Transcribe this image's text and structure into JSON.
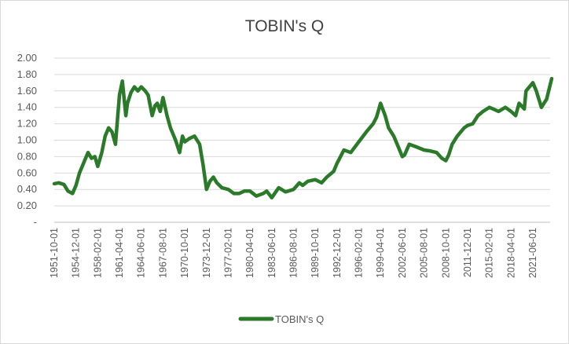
{
  "chart_data": {
    "type": "line",
    "title": "TOBIN's Q",
    "xlabel": "",
    "ylabel": "",
    "ylim": [
      0,
      2.0
    ],
    "y_ticks": [
      "-",
      "0.20",
      "0.40",
      "0.60",
      "0.80",
      "1.00",
      "1.20",
      "1.40",
      "1.60",
      "1.80",
      "2.00"
    ],
    "x_ticks": [
      "1951-10-01",
      "1954-12-01",
      "1958-02-01",
      "1961-04-01",
      "1964-06-01",
      "1967-08-01",
      "1970-10-01",
      "1973-12-01",
      "1977-02-01",
      "1980-04-01",
      "1983-06-01",
      "1986-08-01",
      "1989-10-01",
      "1992-12-01",
      "1996-02-01",
      "1999-04-01",
      "2002-06-01",
      "2005-08-01",
      "2008-10-01",
      "2011-12-01",
      "2015-02-01",
      "2018-04-01",
      "2021-06-01"
    ],
    "grid": true,
    "legend": "bottom",
    "color": "#2a7a2a",
    "series": [
      {
        "name": "TOBIN's Q",
        "x": [
          "1951-10-01",
          "1952-06-01",
          "1953-03-01",
          "1953-10-01",
          "1954-06-01",
          "1954-12-01",
          "1955-06-01",
          "1956-03-01",
          "1956-09-01",
          "1957-03-01",
          "1957-09-01",
          "1958-02-01",
          "1958-09-01",
          "1959-03-01",
          "1959-09-01",
          "1960-03-01",
          "1960-09-01",
          "1961-04-01",
          "1961-09-01",
          "1962-03-01",
          "1962-06-01",
          "1962-12-01",
          "1963-06-01",
          "1963-12-01",
          "1964-06-01",
          "1965-01-01",
          "1965-06-01",
          "1966-01-01",
          "1966-06-01",
          "1966-10-01",
          "1967-03-01",
          "1967-08-01",
          "1968-03-01",
          "1968-09-01",
          "1969-06-01",
          "1970-01-01",
          "1970-06-01",
          "1970-10-01",
          "1971-06-01",
          "1972-03-01",
          "1972-12-01",
          "1973-06-01",
          "1973-12-01",
          "1974-06-01",
          "1974-12-01",
          "1975-06-01",
          "1976-03-01",
          "1977-02-01",
          "1977-12-01",
          "1978-09-01",
          "1979-06-01",
          "1980-04-01",
          "1981-03-01",
          "1982-03-01",
          "1982-09-01",
          "1983-06-01",
          "1984-06-01",
          "1985-06-01",
          "1986-08-01",
          "1987-06-01",
          "1987-12-01",
          "1988-09-01",
          "1989-10-01",
          "1990-09-01",
          "1991-06-01",
          "1992-06-01",
          "1992-12-01",
          "1993-12-01",
          "1994-12-01",
          "1996-02-01",
          "1997-03-01",
          "1998-03-01",
          "1998-09-01",
          "1999-04-01",
          "1999-12-01",
          "2000-06-01",
          "2001-03-01",
          "2001-09-01",
          "2002-06-01",
          "2002-10-01",
          "2003-06-01",
          "2004-06-01",
          "2005-08-01",
          "2006-06-01",
          "2007-06-01",
          "2008-03-01",
          "2008-10-01",
          "2009-03-01",
          "2009-09-01",
          "2010-06-01",
          "2011-06-01",
          "2011-12-01",
          "2012-09-01",
          "2013-06-01",
          "2014-03-01",
          "2015-02-01",
          "2015-09-01",
          "2016-06-01",
          "2017-06-01",
          "2018-04-01",
          "2018-12-01",
          "2019-06-01",
          "2020-03-01",
          "2020-06-01",
          "2021-06-01",
          "2021-12-01",
          "2022-09-01",
          "2023-06-01",
          "2024-03-01"
        ],
        "y": [
          0.47,
          0.48,
          0.46,
          0.38,
          0.35,
          0.45,
          0.6,
          0.75,
          0.85,
          0.78,
          0.8,
          0.68,
          0.85,
          1.05,
          1.15,
          1.1,
          0.95,
          1.55,
          1.72,
          1.3,
          1.45,
          1.58,
          1.65,
          1.6,
          1.65,
          1.6,
          1.55,
          1.3,
          1.42,
          1.45,
          1.35,
          1.52,
          1.3,
          1.15,
          1.0,
          0.85,
          1.05,
          0.98,
          1.02,
          1.05,
          0.95,
          0.7,
          0.4,
          0.5,
          0.55,
          0.48,
          0.42,
          0.4,
          0.35,
          0.35,
          0.38,
          0.38,
          0.32,
          0.35,
          0.38,
          0.3,
          0.42,
          0.37,
          0.4,
          0.48,
          0.45,
          0.5,
          0.52,
          0.48,
          0.55,
          0.62,
          0.72,
          0.88,
          0.85,
          0.98,
          1.1,
          1.2,
          1.28,
          1.45,
          1.3,
          1.15,
          1.05,
          0.95,
          0.8,
          0.82,
          0.95,
          0.92,
          0.88,
          0.87,
          0.85,
          0.78,
          0.75,
          0.82,
          0.95,
          1.05,
          1.15,
          1.18,
          1.2,
          1.3,
          1.35,
          1.4,
          1.38,
          1.35,
          1.4,
          1.35,
          1.3,
          1.45,
          1.38,
          1.6,
          1.7,
          1.6,
          1.4,
          1.5,
          1.75
        ]
      }
    ]
  }
}
